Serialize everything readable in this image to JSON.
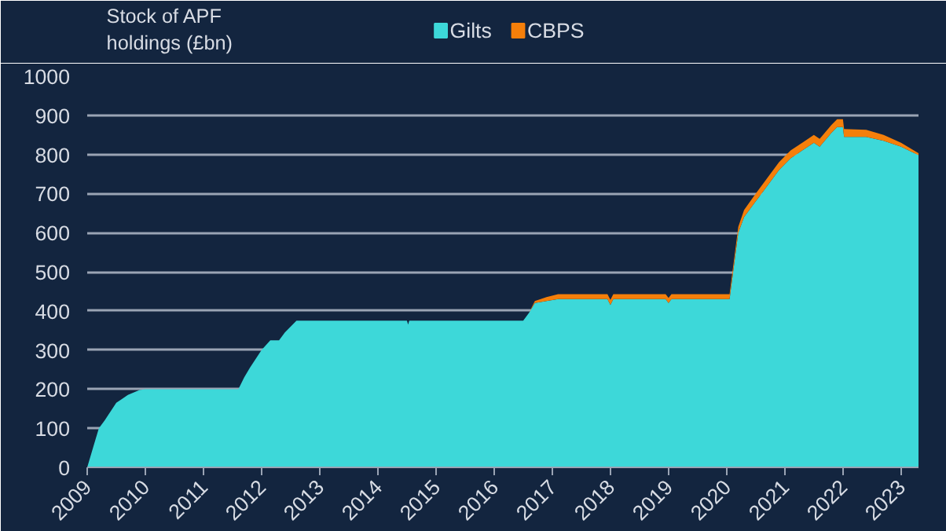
{
  "chart_data": {
    "type": "area",
    "stacked": true,
    "ylabel": "Stock of APF holdings (£bn)",
    "x": [
      2009.0,
      2009.1,
      2009.2,
      2009.3,
      2009.5,
      2009.7,
      2009.9,
      2010.0,
      2011.6,
      2011.7,
      2011.8,
      2012.0,
      2012.15,
      2012.3,
      2012.4,
      2012.6,
      2014.5,
      2014.52,
      2014.54,
      2016.5,
      2016.6,
      2016.7,
      2016.9,
      2017.1,
      2017.95,
      2018.0,
      2018.05,
      2018.95,
      2019.0,
      2019.05,
      2019.95,
      2020.05,
      2020.2,
      2020.3,
      2020.5,
      2020.7,
      2020.9,
      2021.1,
      2021.3,
      2021.5,
      2021.6,
      2021.8,
      2021.9,
      2022.0,
      2022.02,
      2022.4,
      2022.7,
      2023.0,
      2023.3
    ],
    "series": [
      {
        "name": "Gilts",
        "color": "#3dd8d9",
        "values": [
          0,
          50,
          100,
          120,
          165,
          185,
          198,
          200,
          200,
          230,
          255,
          300,
          325,
          325,
          345,
          375,
          375,
          365,
          375,
          375,
          395,
          420,
          425,
          430,
          430,
          415,
          430,
          430,
          420,
          430,
          430,
          430,
          600,
          640,
          680,
          720,
          760,
          790,
          810,
          830,
          820,
          855,
          870,
          870,
          845,
          845,
          835,
          820,
          798
        ]
      },
      {
        "name": "CBPS",
        "color": "#f57f0a",
        "values": [
          0,
          0,
          0,
          0,
          0,
          0,
          0,
          0,
          0,
          0,
          0,
          0,
          0,
          0,
          0,
          0,
          0,
          0,
          0,
          0,
          0,
          5,
          10,
          13,
          13,
          13,
          13,
          13,
          13,
          13,
          13,
          13,
          15,
          18,
          20,
          20,
          20,
          20,
          20,
          20,
          20,
          20,
          20,
          20,
          20,
          18,
          15,
          10,
          5
        ]
      }
    ],
    "xlim": [
      2009,
      2023.3
    ],
    "xticks": [
      2009,
      2010,
      2011,
      2012,
      2013,
      2014,
      2015,
      2016,
      2017,
      2018,
      2019,
      2020,
      2021,
      2022,
      2023
    ],
    "ylim": [
      0,
      1000
    ],
    "yticks": [
      0,
      100,
      200,
      300,
      400,
      500,
      600,
      700,
      800,
      900,
      1000
    ],
    "grid": "y",
    "legend": "top"
  }
}
